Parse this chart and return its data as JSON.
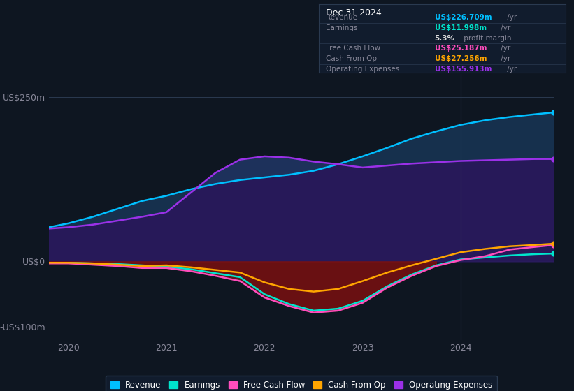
{
  "background_color": "#0e1621",
  "plot_bg_color": "#0e1621",
  "x": [
    2019.8,
    2020.0,
    2020.25,
    2020.5,
    2020.75,
    2021.0,
    2021.25,
    2021.5,
    2021.75,
    2022.0,
    2022.25,
    2022.5,
    2022.75,
    2023.0,
    2023.25,
    2023.5,
    2023.75,
    2024.0,
    2024.25,
    2024.5,
    2024.75,
    2024.95
  ],
  "revenue": [
    52,
    58,
    68,
    80,
    92,
    100,
    110,
    118,
    124,
    128,
    132,
    138,
    148,
    160,
    173,
    187,
    198,
    208,
    215,
    220,
    224,
    227
  ],
  "op_expenses": [
    50,
    52,
    56,
    62,
    68,
    75,
    105,
    135,
    155,
    160,
    158,
    152,
    148,
    143,
    146,
    149,
    151,
    153,
    154,
    155,
    156,
    156
  ],
  "earnings": [
    -2,
    -2,
    -3,
    -4,
    -6,
    -8,
    -12,
    -18,
    -24,
    -50,
    -65,
    -75,
    -72,
    -60,
    -38,
    -20,
    -6,
    3,
    6,
    9,
    11,
    12
  ],
  "free_cf": [
    -3,
    -3,
    -5,
    -7,
    -10,
    -10,
    -15,
    -22,
    -30,
    -55,
    -68,
    -78,
    -75,
    -63,
    -40,
    -22,
    -7,
    2,
    8,
    18,
    22,
    25
  ],
  "cash_from_op": [
    -2,
    -2,
    -3,
    -5,
    -7,
    -6,
    -9,
    -13,
    -17,
    -32,
    -42,
    -46,
    -42,
    -30,
    -17,
    -6,
    4,
    14,
    19,
    23,
    25,
    27
  ],
  "xlim": [
    2019.8,
    2024.95
  ],
  "ylim": [
    -120,
    285
  ],
  "yticks": [
    -100,
    0,
    250
  ],
  "ytick_labels": [
    "-US$100m",
    "US$0",
    "US$250m"
  ],
  "xticks": [
    2020,
    2021,
    2022,
    2023,
    2024
  ],
  "vline_x": 2024.0,
  "revenue_color": "#00bfff",
  "op_expenses_color": "#9b30e8",
  "earnings_color": "#00e5cc",
  "free_cf_color": "#ff4dbd",
  "cash_from_op_color": "#ffa500",
  "op_fill_color": "#2a1a5e",
  "rev_op_fill_color": "#1a3a5c",
  "earnings_neg_fill": "#7a1010",
  "legend_items": [
    {
      "label": "Revenue",
      "color": "#00bfff"
    },
    {
      "label": "Earnings",
      "color": "#00e5cc"
    },
    {
      "label": "Free Cash Flow",
      "color": "#ff4dbd"
    },
    {
      "label": "Cash From Op",
      "color": "#ffa500"
    },
    {
      "label": "Operating Expenses",
      "color": "#9b30e8"
    }
  ],
  "info_box": {
    "date": "Dec 31 2024",
    "bg_color": "#111c2d",
    "border_color": "#2a3a50",
    "rows": [
      {
        "label": "Revenue",
        "value": "US$226.709m",
        "unit": " /yr",
        "value_color": "#00bfff"
      },
      {
        "label": "Earnings",
        "value": "US$11.998m",
        "unit": " /yr",
        "value_color": "#00e5cc"
      },
      {
        "label": "",
        "value": "5.3%",
        "unit": " profit margin",
        "value_color": "#dddddd"
      },
      {
        "label": "Free Cash Flow",
        "value": "US$25.187m",
        "unit": " /yr",
        "value_color": "#ff4dbd"
      },
      {
        "label": "Cash From Op",
        "value": "US$27.256m",
        "unit": " /yr",
        "value_color": "#ffa500"
      },
      {
        "label": "Operating Expenses",
        "value": "US$155.913m",
        "unit": " /yr",
        "value_color": "#9b30e8"
      }
    ]
  }
}
